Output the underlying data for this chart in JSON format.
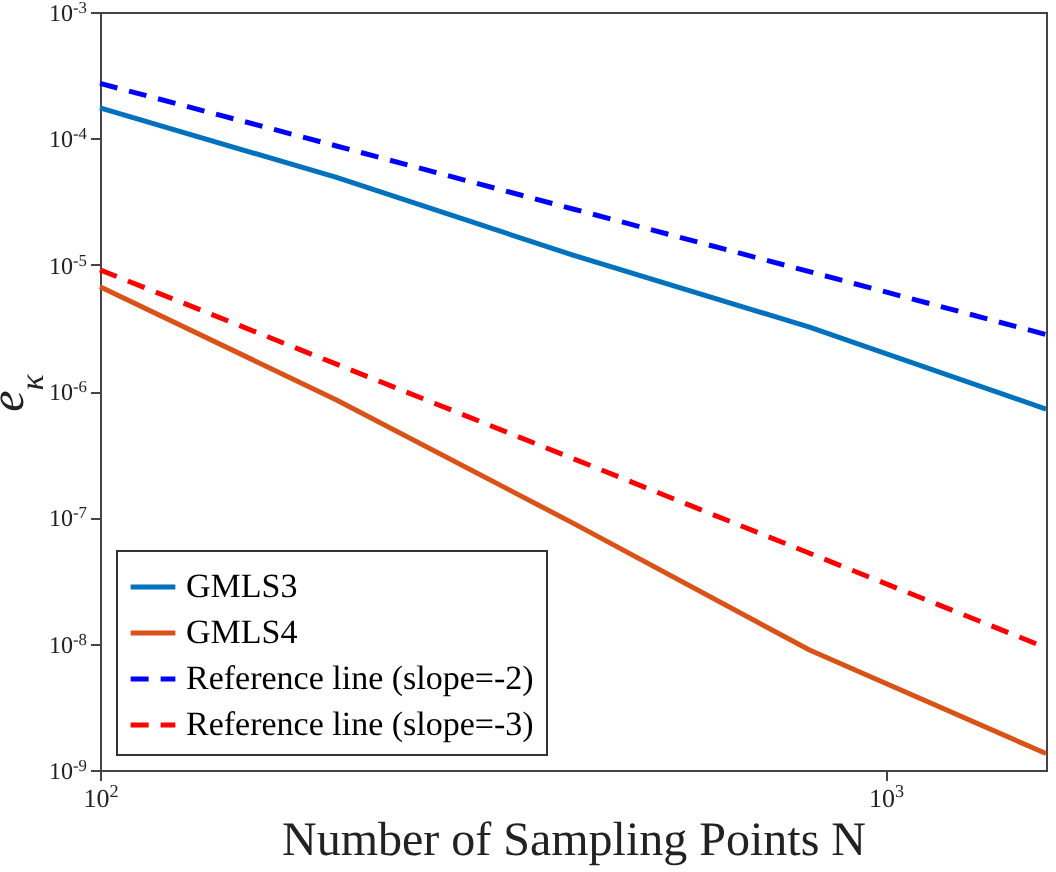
{
  "chart_data": {
    "type": "line",
    "xlabel": "Number of Sampling Points N",
    "ylabel": "e$_{κ}$",
    "log": "xy",
    "x": [
      100,
      200,
      400,
      800,
      1600
    ],
    "xlim": [
      100,
      1600
    ],
    "xticks": [
      {
        "value": 100,
        "label": "10$^{2}$"
      },
      {
        "value": 1000,
        "label": "10$^{3}$"
      }
    ],
    "ylim": [
      1e-09,
      0.001
    ],
    "yticks": [
      {
        "value": 1e-09,
        "label": "10$^{-9}$"
      },
      {
        "value": 1e-08,
        "label": "10$^{-8}$"
      },
      {
        "value": 1e-07,
        "label": "10$^{-7}$"
      },
      {
        "value": 1e-06,
        "label": "10$^{-6}$"
      },
      {
        "value": 1e-05,
        "label": "10$^{-5}$"
      },
      {
        "value": 0.0001,
        "label": "10$^{-4}$"
      },
      {
        "value": 0.001,
        "label": "10$^{-3}$"
      }
    ],
    "grid": false,
    "legend": "bottom left",
    "marker": "none",
    "series": [
      {
        "name": "GMLS3",
        "color": "#0072bd",
        "line_style": "solid",
        "values": [
          0.000174,
          4.9e-05,
          1.19e-05,
          3.2e-06,
          7.2e-07
        ]
      },
      {
        "name": "GMLS4",
        "color": "#d95319",
        "line_style": "solid",
        "values": [
          6.7e-06,
          8.5e-07,
          9e-08,
          8.9e-09,
          1.35e-09
        ]
      },
      {
        "name": "Reference line (slope=-2)",
        "color": "#0000ff",
        "line_style": "dashed",
        "values": [
          0.000272,
          8.7e-05,
          2.76e-05,
          8.8e-06,
          2.8e-06
        ]
      },
      {
        "name": "Reference line (slope=-3)",
        "color": "#ff0000",
        "line_style": "dashed",
        "values": [
          9.1e-06,
          1.63e-06,
          2.92e-07,
          5.2e-08,
          9.3e-09
        ]
      }
    ]
  }
}
